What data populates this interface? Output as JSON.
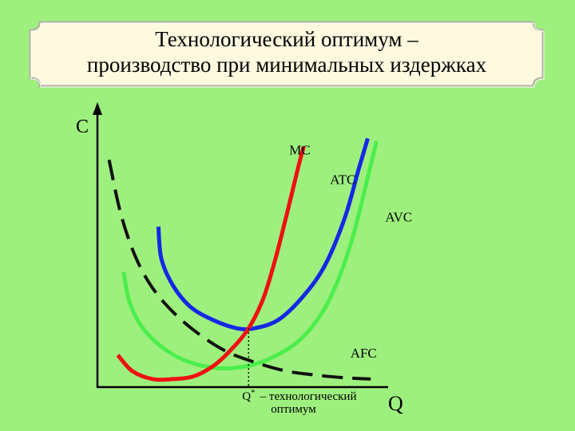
{
  "title": {
    "line1": "Технологический оптимум –",
    "line2": "производство при минимальных издержках"
  },
  "chart_data": {
    "type": "line",
    "ylabel": "C",
    "xlabel": "Q",
    "xlim": [
      0,
      10
    ],
    "ylim": [
      0,
      10
    ],
    "grid": false,
    "optimum": {
      "x": 5.2,
      "y": 2.2,
      "label_main": "Q",
      "label_sup": "*",
      "label_text": "– технологический",
      "label_text2": "оптимум"
    },
    "series": [
      {
        "name": "MC",
        "color": "#EE1111",
        "dash": false,
        "points": [
          [
            0.7,
            1.2
          ],
          [
            1.2,
            0.6
          ],
          [
            1.9,
            0.3
          ],
          [
            2.6,
            0.3
          ],
          [
            3.3,
            0.4
          ],
          [
            4.0,
            0.8
          ],
          [
            4.6,
            1.4
          ],
          [
            5.2,
            2.2
          ],
          [
            5.7,
            3.3
          ],
          [
            6.1,
            4.7
          ],
          [
            6.5,
            6.4
          ],
          [
            6.9,
            8.2
          ],
          [
            7.1,
            9.0
          ]
        ]
      },
      {
        "name": "ATC",
        "color": "#1428E6",
        "dash": false,
        "points": [
          [
            2.1,
            6.0
          ],
          [
            2.2,
            4.8
          ],
          [
            2.6,
            3.8
          ],
          [
            3.2,
            3.0
          ],
          [
            4.0,
            2.5
          ],
          [
            4.8,
            2.2
          ],
          [
            5.4,
            2.2
          ],
          [
            6.2,
            2.5
          ],
          [
            7.0,
            3.3
          ],
          [
            7.8,
            4.5
          ],
          [
            8.5,
            6.3
          ],
          [
            9.0,
            8.2
          ],
          [
            9.3,
            9.3
          ]
        ]
      },
      {
        "name": "AVC",
        "color": "#4CEE4C",
        "dash": false,
        "points": [
          [
            0.9,
            4.3
          ],
          [
            1.1,
            3.2
          ],
          [
            1.5,
            2.3
          ],
          [
            2.1,
            1.6
          ],
          [
            2.8,
            1.1
          ],
          [
            3.6,
            0.8
          ],
          [
            4.4,
            0.7
          ],
          [
            5.2,
            0.8
          ],
          [
            6.0,
            1.1
          ],
          [
            7.0,
            1.8
          ],
          [
            7.9,
            3.1
          ],
          [
            8.7,
            5.3
          ],
          [
            9.4,
            8.3
          ],
          [
            9.6,
            9.2
          ]
        ]
      },
      {
        "name": "AFC",
        "color": "#111111",
        "dash": true,
        "points": [
          [
            0.4,
            8.5
          ],
          [
            0.8,
            6.5
          ],
          [
            1.3,
            4.9
          ],
          [
            1.9,
            3.7
          ],
          [
            2.7,
            2.7
          ],
          [
            3.6,
            1.9
          ],
          [
            4.5,
            1.3
          ],
          [
            5.5,
            0.9
          ],
          [
            6.5,
            0.6
          ],
          [
            7.5,
            0.45
          ],
          [
            8.5,
            0.35
          ],
          [
            9.4,
            0.3
          ]
        ]
      }
    ],
    "series_label_pos": {
      "MC": [
        6.6,
        8.7
      ],
      "ATC": [
        8.0,
        7.6
      ],
      "AVC": [
        9.9,
        6.2
      ],
      "AFC": [
        8.7,
        1.1
      ]
    }
  }
}
